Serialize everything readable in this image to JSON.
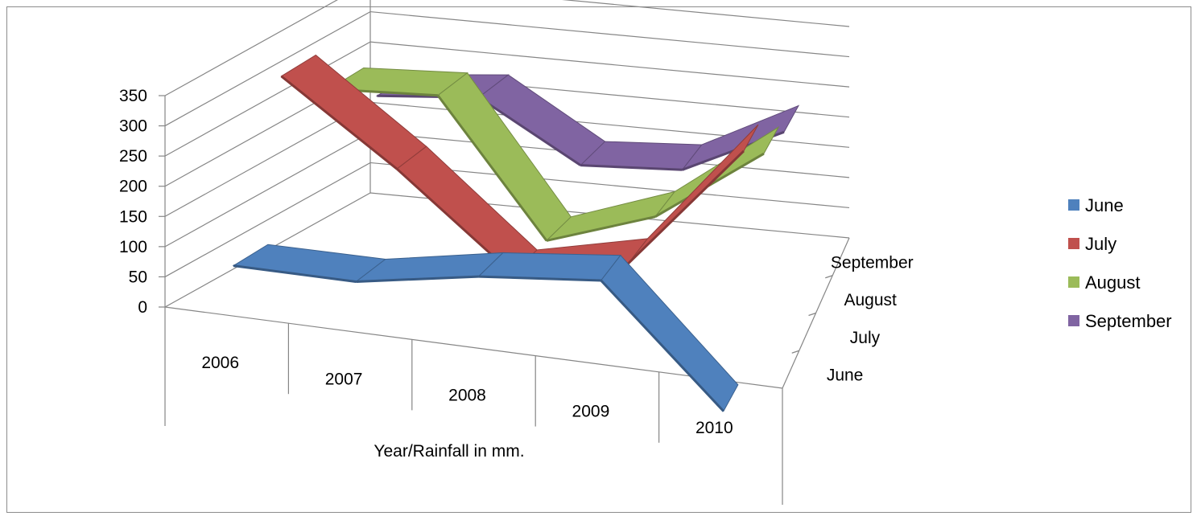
{
  "chart_data": {
    "type": "line",
    "title": "",
    "categories": [
      "2006",
      "2007",
      "2008",
      "2009",
      "2010"
    ],
    "xlabel": "Year/Rainfall in mm.",
    "ylabel": "",
    "depth_labels": [
      "June",
      "July",
      "August",
      "September"
    ],
    "ylim": [
      0,
      350
    ],
    "yticks": [
      "0",
      "50",
      "100",
      "150",
      "200",
      "250",
      "300",
      "350"
    ],
    "grid": true,
    "legend_position": "right",
    "series": [
      {
        "name": "June",
        "color": "#4f81bd",
        "values": [
          75,
          75,
          110,
          130,
          -60
        ]
      },
      {
        "name": "July",
        "color": "#c0504d",
        "values": [
          340,
          210,
          60,
          100,
          310
        ]
      },
      {
        "name": "August",
        "color": "#9bbb59",
        "values": [
          270,
          280,
          60,
          120,
          245
        ]
      },
      {
        "name": "September",
        "color": "#8064a2",
        "values": [
          210,
          225,
          130,
          140,
          220
        ]
      }
    ]
  }
}
